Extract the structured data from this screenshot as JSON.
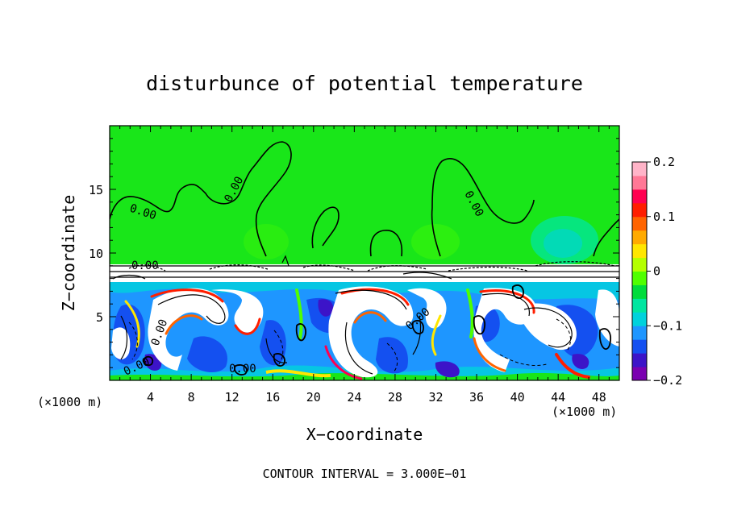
{
  "chart_data": {
    "type": "heatmap",
    "title": "disturbunce of potential temperature",
    "xlabel": "X−coordinate",
    "ylabel": "Z−coordinate",
    "x_unit": "(×1000 m)",
    "x_unit_right": "(×1000 m)",
    "footer": "CONTOUR INTERVAL = 3.000E−01",
    "xlim": [
      0,
      50
    ],
    "ylim": [
      0,
      20
    ],
    "x_ticks": [
      4,
      8,
      12,
      16,
      20,
      24,
      28,
      32,
      36,
      40,
      44,
      48
    ],
    "x_tick_labels": [
      "4",
      "8",
      "12",
      "16",
      "20",
      "24",
      "28",
      "32",
      "36",
      "40",
      "44",
      "48"
    ],
    "y_ticks": [
      5,
      10,
      15
    ],
    "y_tick_labels": [
      "5",
      "10",
      "15"
    ],
    "colorbar": {
      "range": [
        -0.2,
        0.2
      ],
      "ticks": [
        0.2,
        0.1,
        0,
        -0.1,
        -0.2
      ],
      "tick_labels": [
        "0.2",
        "0.1",
        "0",
        "−0.1",
        "−0.2"
      ],
      "colors": [
        "#7a00b0",
        "#3c14c8",
        "#1450f0",
        "#1e96ff",
        "#00d2dc",
        "#00e6a0",
        "#00dc3c",
        "#50ff00",
        "#b4ff00",
        "#ffe600",
        "#ffaa00",
        "#ff6400",
        "#ff1e00",
        "#ff0050",
        "#ff7896",
        "#ffb4c8"
      ]
    },
    "contour_labels": [
      "0.00",
      "0.00",
      "0.00",
      "0.00",
      "0.00",
      "0.00",
      "0.00",
      "0.00"
    ],
    "grid": false
  }
}
